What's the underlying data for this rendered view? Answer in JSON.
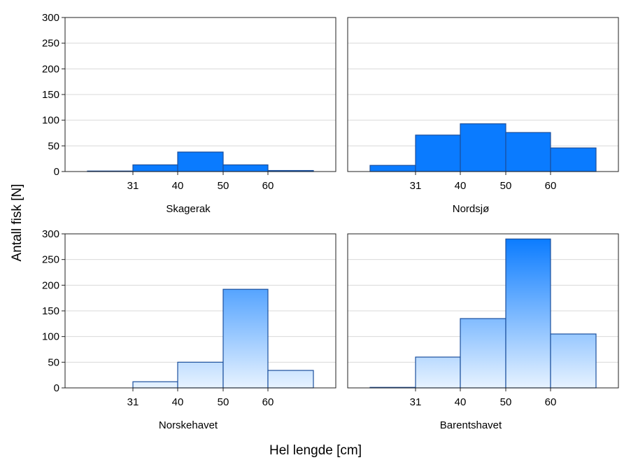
{
  "chart_data": {
    "type": "bar",
    "xlabel": "Hel lengde [cm]",
    "ylabel": "Antall fisk [N]",
    "ylim": [
      0,
      300
    ],
    "yticks": [
      "0",
      "50",
      "100",
      "150",
      "200",
      "250",
      "300"
    ],
    "bins": [
      "<31",
      "31-40",
      "40-50",
      "50-60",
      ">60"
    ],
    "xtick_labels": [
      "31",
      "40",
      "50",
      "60"
    ],
    "grid": true,
    "colors": {
      "bar_light": "#e6f2ff",
      "bar_dark": "#0a7bff",
      "bar_edge": "#1b4f9c",
      "frame": "#222222",
      "grid": "#d9d9d9"
    },
    "panels": [
      {
        "title": "Skagerak",
        "values": [
          1,
          13,
          38,
          13,
          2
        ]
      },
      {
        "title": "Nordsjø",
        "values": [
          12,
          71,
          93,
          76,
          46
        ]
      },
      {
        "title": "Norskehavet",
        "values": [
          0,
          12,
          50,
          192,
          34
        ]
      },
      {
        "title": "Barentshavet",
        "values": [
          1,
          60,
          135,
          290,
          105
        ]
      }
    ]
  }
}
